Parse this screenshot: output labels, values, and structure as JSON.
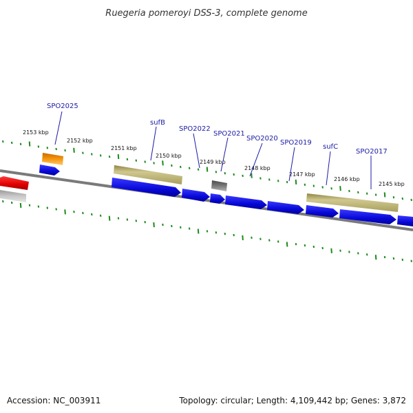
{
  "title": "Ruegeria pomeroyi DSS-3, complete genome",
  "footer": {
    "accession": "Accession: NC_003911",
    "topology": "Topology: circular; Length: 4,109,442 bp; Genes: 3,872"
  },
  "ruler": {
    "ticks": [
      "2153 kbp",
      "2152 kbp",
      "2151 kbp",
      "2150 kbp",
      "2149 kbp",
      "2148 kbp",
      "2147 kbp",
      "2146 kbp",
      "2145 kbp"
    ]
  },
  "gene_labels": [
    "SPO2025",
    "sufB",
    "SPO2022",
    "SPO2021",
    "SPO2020",
    "SPO2019",
    "sufC",
    "SPO2017"
  ],
  "colors": {
    "gene": "#1010e0",
    "gene_label": "#1a1aa6",
    "tick": "#1a8a1a",
    "backbone": "#808080",
    "domain_khaki": "#c2b97a",
    "orange": "#f08c00",
    "red": "#e01010",
    "gray_feature": "#6e6e6e"
  }
}
